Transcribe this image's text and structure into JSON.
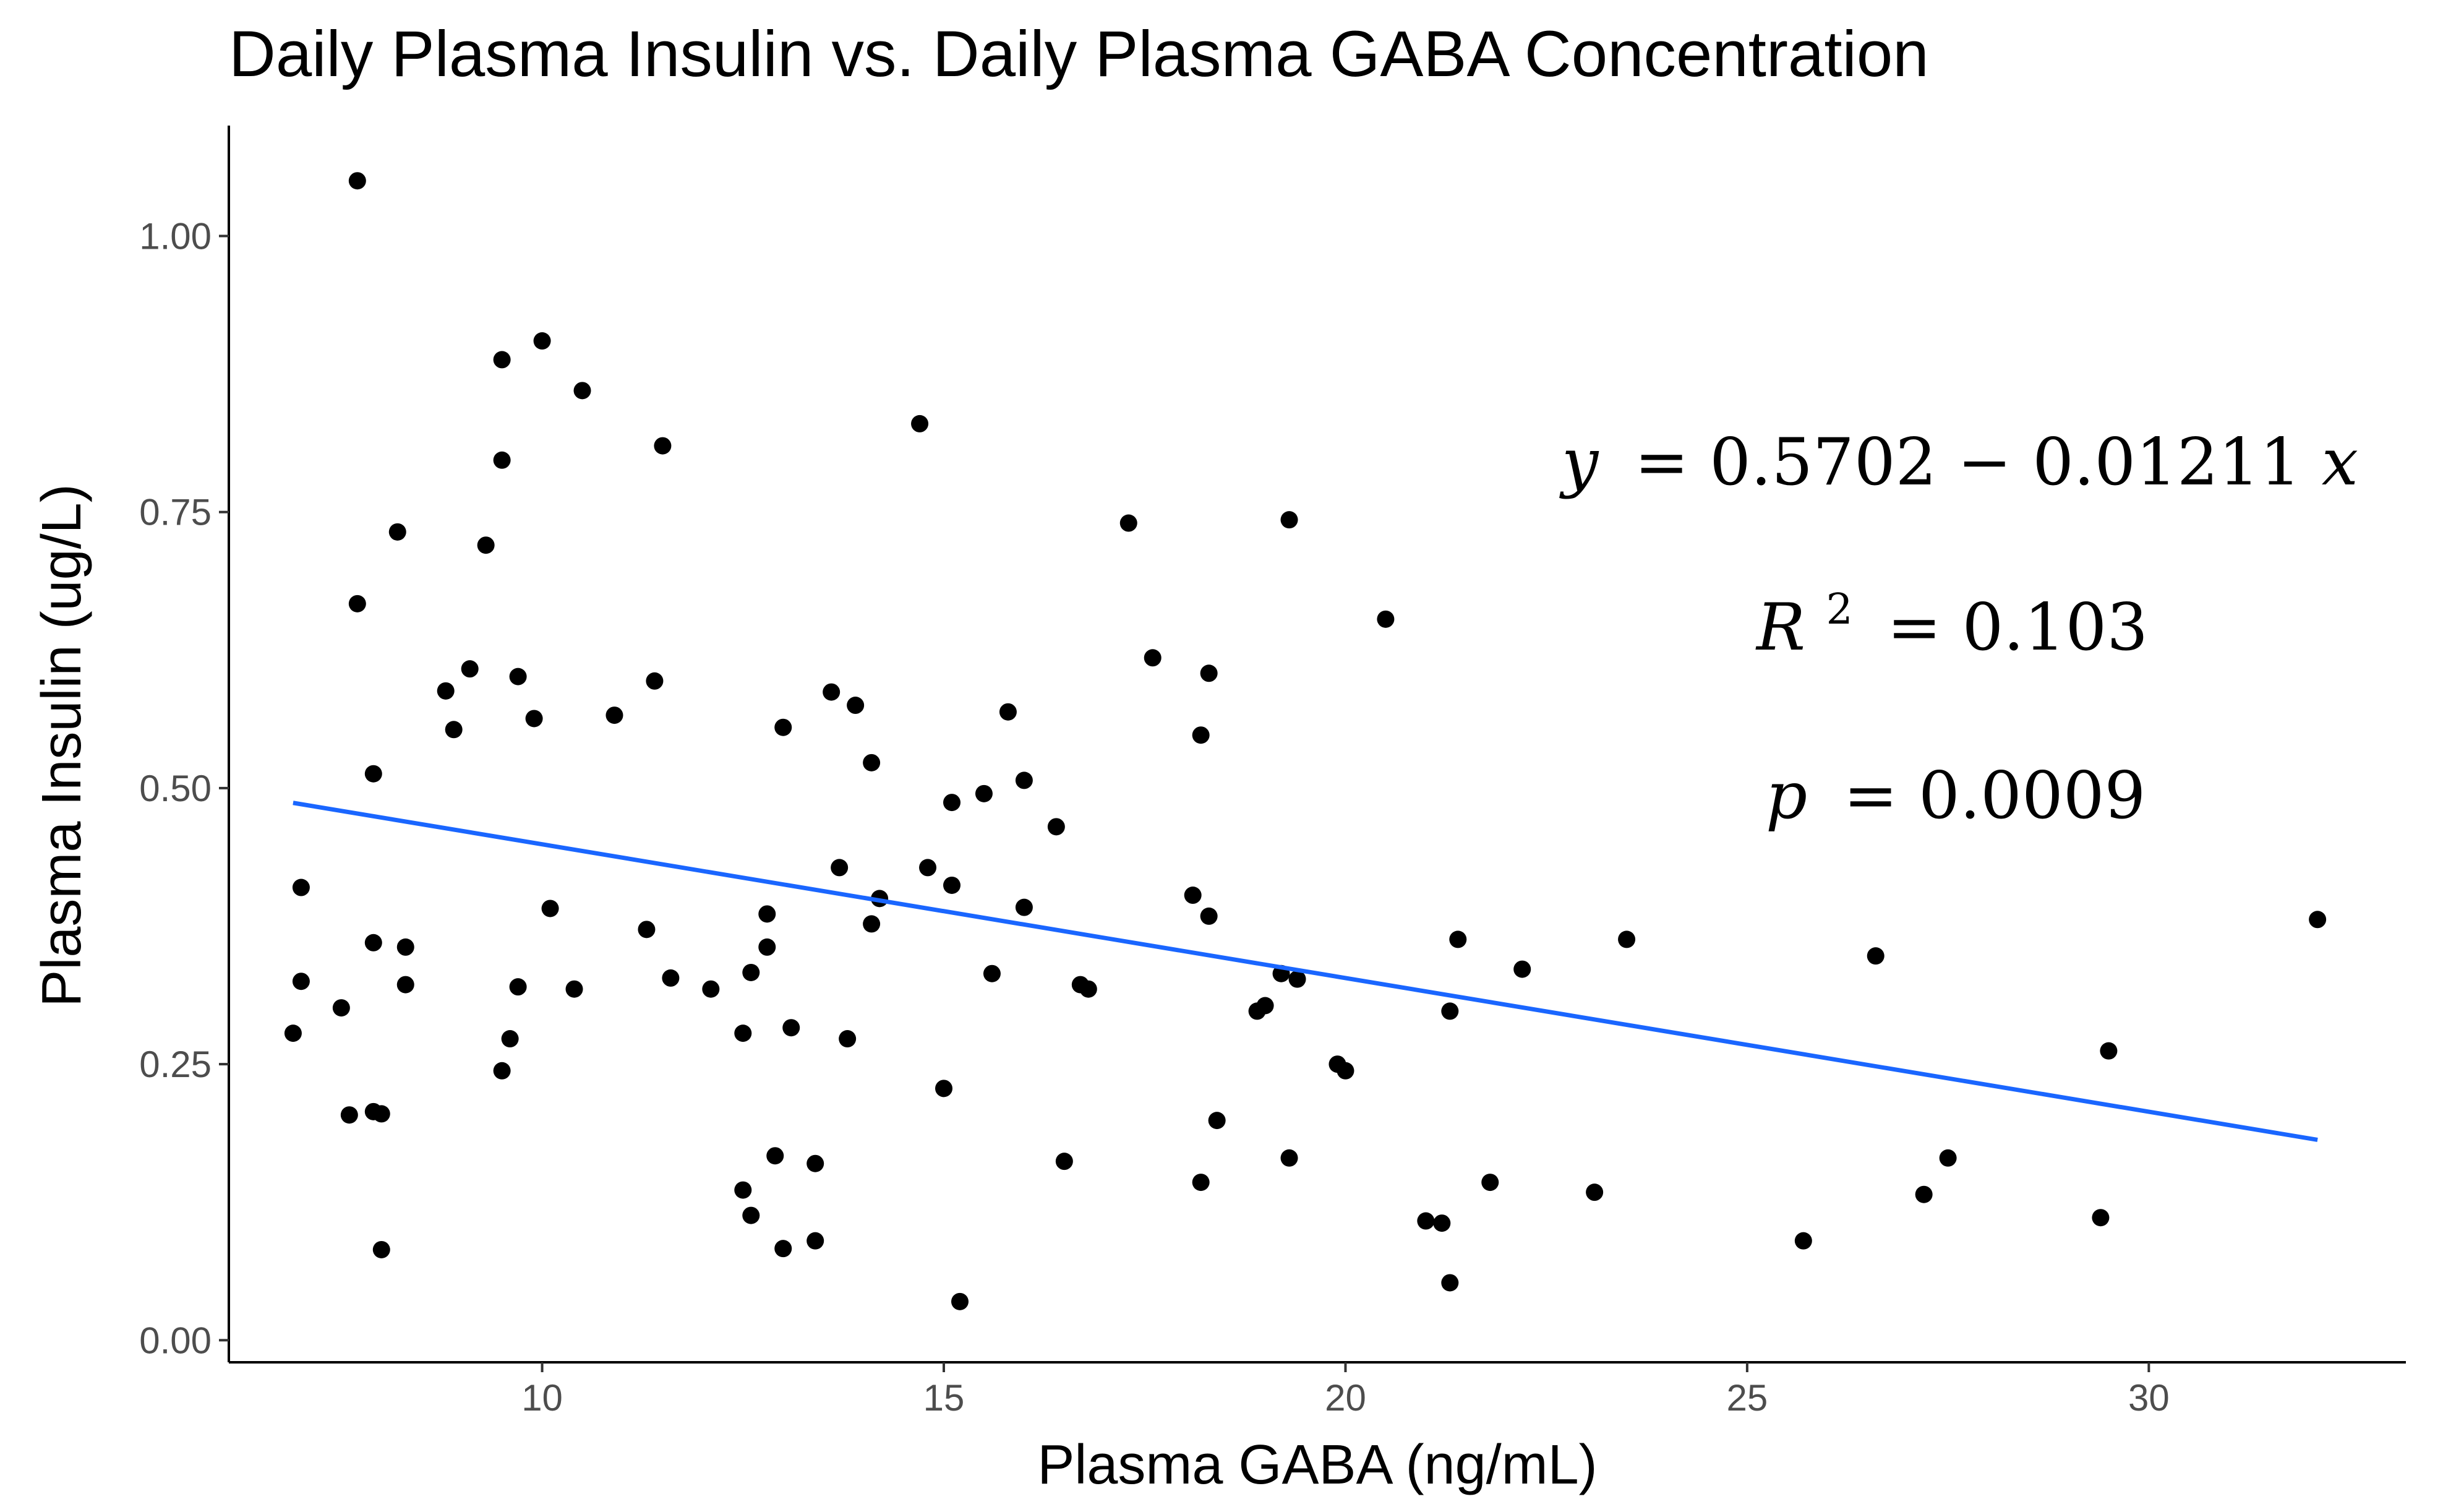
{
  "chart_data": {
    "type": "scatter",
    "title": "Daily Plasma Insulin vs. Daily Plasma GABA Concentration",
    "xlabel": "Plasma GABA (ng/mL)",
    "ylabel": "Plasma Insulin (ug/L)",
    "xlim": [
      6.1,
      33.2
    ],
    "ylim": [
      -0.02,
      1.1
    ],
    "x_ticks": [
      10,
      15,
      20,
      25,
      30
    ],
    "x_tick_labels": [
      "10",
      "15",
      "20",
      "25",
      "30"
    ],
    "y_ticks": [
      0.0,
      0.25,
      0.5,
      0.75,
      1.0
    ],
    "y_tick_labels": [
      "0.00",
      "0.25",
      "0.50",
      "0.75",
      "1.00"
    ],
    "grid": false,
    "point_color": "#000000",
    "fit_color": "#1a66ff",
    "fit_line": {
      "intercept": 0.5702,
      "slope": -0.01211,
      "x_start": 6.9,
      "x_end": 32.1
    },
    "annotations": {
      "equation": {
        "lhs": "y",
        "rhs": "= 0.5702 − 0.01211",
        "var": "x"
      },
      "r2": {
        "symbol": "R",
        "exponent": "2",
        "value": "= 0.103"
      },
      "p": {
        "symbol": "p",
        "value": "= 0.0009"
      }
    },
    "points": [
      [
        7.7,
        1.05
      ],
      [
        10.0,
        0.905
      ],
      [
        9.5,
        0.888
      ],
      [
        10.5,
        0.86
      ],
      [
        11.5,
        0.81
      ],
      [
        9.5,
        0.797
      ],
      [
        14.7,
        0.83
      ],
      [
        8.2,
        0.732
      ],
      [
        9.3,
        0.72
      ],
      [
        7.7,
        0.667
      ],
      [
        8.8,
        0.588
      ],
      [
        9.1,
        0.608
      ],
      [
        9.7,
        0.601
      ],
      [
        11.4,
        0.597
      ],
      [
        8.9,
        0.553
      ],
      [
        9.9,
        0.563
      ],
      [
        10.9,
        0.566
      ],
      [
        7.9,
        0.513
      ],
      [
        6.9,
        0.278
      ],
      [
        7.0,
        0.41
      ],
      [
        7.0,
        0.325
      ],
      [
        7.5,
        0.301
      ],
      [
        7.6,
        0.204
      ],
      [
        7.9,
        0.207
      ],
      [
        7.9,
        0.36
      ],
      [
        8.0,
        0.205
      ],
      [
        8.0,
        0.082
      ],
      [
        8.3,
        0.356
      ],
      [
        8.3,
        0.322
      ],
      [
        9.5,
        0.244
      ],
      [
        9.6,
        0.273
      ],
      [
        9.7,
        0.32
      ],
      [
        10.1,
        0.391
      ],
      [
        10.4,
        0.318
      ],
      [
        11.3,
        0.372
      ],
      [
        11.6,
        0.328
      ],
      [
        12.1,
        0.318
      ],
      [
        12.5,
        0.278
      ],
      [
        12.5,
        0.136
      ],
      [
        12.6,
        0.333
      ],
      [
        12.6,
        0.113
      ],
      [
        12.8,
        0.386
      ],
      [
        12.8,
        0.356
      ],
      [
        12.9,
        0.167
      ],
      [
        13.0,
        0.555
      ],
      [
        13.0,
        0.083
      ],
      [
        13.1,
        0.283
      ],
      [
        13.4,
        0.09
      ],
      [
        13.4,
        0.16
      ],
      [
        13.6,
        0.587
      ],
      [
        13.7,
        0.428
      ],
      [
        13.8,
        0.273
      ],
      [
        13.9,
        0.575
      ],
      [
        14.1,
        0.523
      ],
      [
        14.1,
        0.377
      ],
      [
        14.2,
        0.4
      ],
      [
        14.8,
        0.428
      ],
      [
        15.0,
        0.228
      ],
      [
        15.1,
        0.487
      ],
      [
        15.1,
        0.412
      ],
      [
        15.2,
        0.035
      ],
      [
        15.5,
        0.495
      ],
      [
        15.6,
        0.332
      ],
      [
        15.8,
        0.569
      ],
      [
        16.0,
        0.507
      ],
      [
        16.0,
        0.392
      ],
      [
        16.4,
        0.465
      ],
      [
        16.5,
        0.162
      ],
      [
        16.7,
        0.322
      ],
      [
        16.8,
        0.318
      ],
      [
        17.3,
        0.74
      ],
      [
        17.6,
        0.618
      ],
      [
        18.1,
        0.403
      ],
      [
        18.2,
        0.548
      ],
      [
        18.2,
        0.143
      ],
      [
        18.3,
        0.604
      ],
      [
        18.3,
        0.384
      ],
      [
        18.4,
        0.199
      ],
      [
        18.9,
        0.298
      ],
      [
        19.0,
        0.303
      ],
      [
        19.2,
        0.332
      ],
      [
        19.3,
        0.743
      ],
      [
        19.3,
        0.165
      ],
      [
        19.4,
        0.327
      ],
      [
        19.9,
        0.25
      ],
      [
        20.0,
        0.244
      ],
      [
        20.5,
        0.653
      ],
      [
        21.0,
        0.108
      ],
      [
        21.2,
        0.106
      ],
      [
        21.3,
        0.298
      ],
      [
        21.3,
        0.052
      ],
      [
        21.4,
        0.363
      ],
      [
        21.8,
        0.143
      ],
      [
        22.2,
        0.336
      ],
      [
        23.1,
        0.134
      ],
      [
        23.5,
        0.363
      ],
      [
        25.7,
        0.09
      ],
      [
        26.6,
        0.348
      ],
      [
        27.2,
        0.132
      ],
      [
        27.5,
        0.165
      ],
      [
        29.4,
        0.111
      ],
      [
        29.5,
        0.262
      ],
      [
        32.1,
        0.381
      ]
    ]
  }
}
